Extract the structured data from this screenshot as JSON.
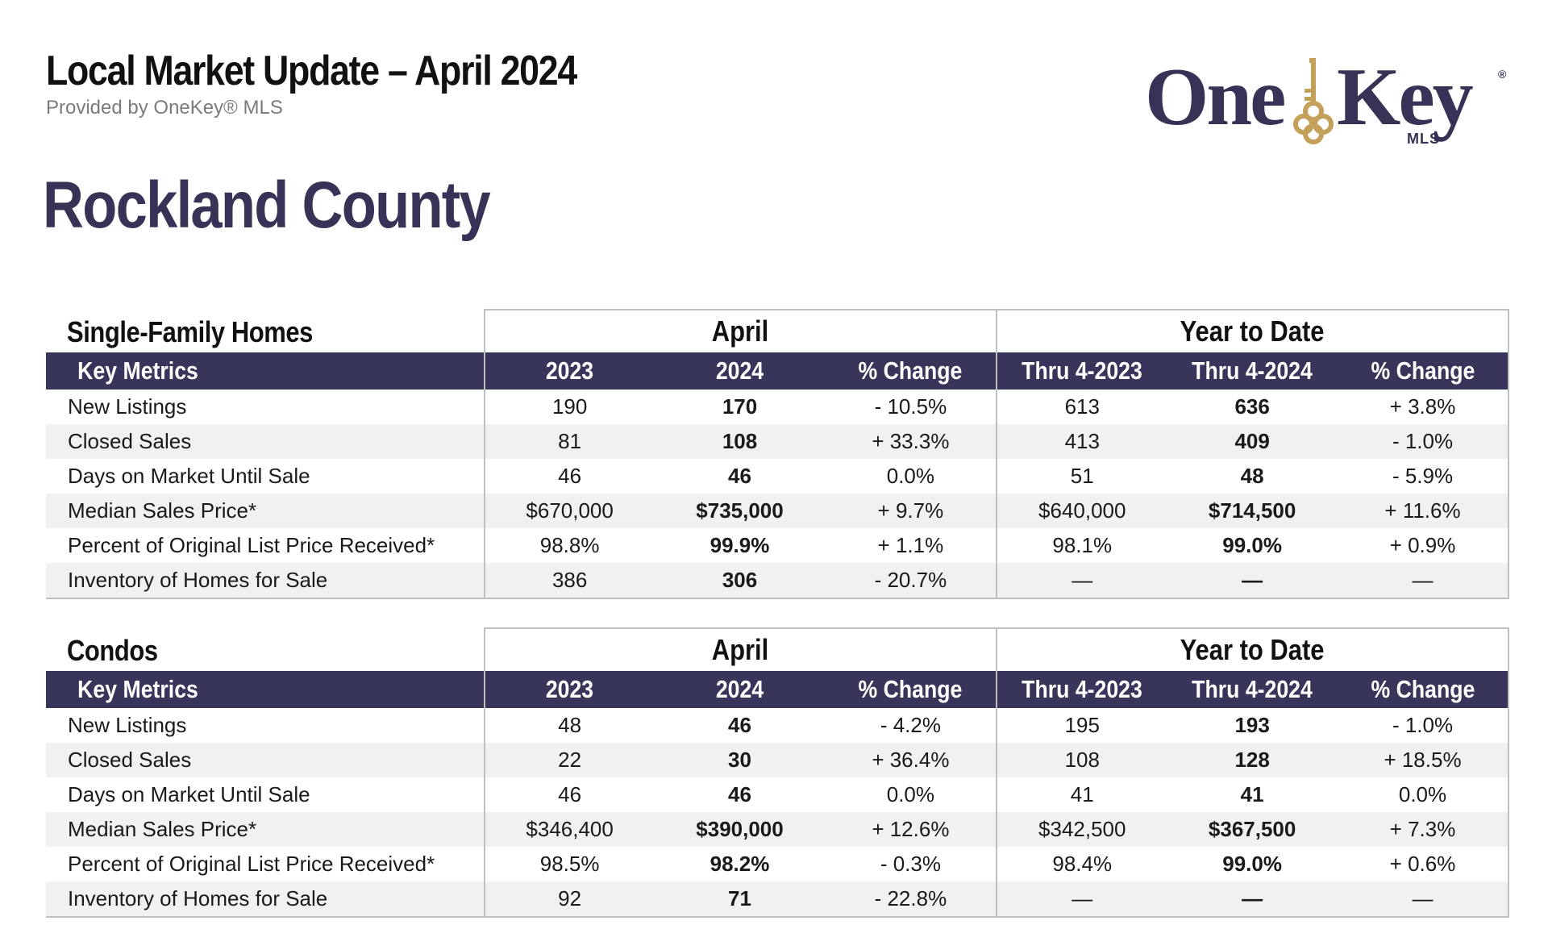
{
  "header": {
    "title": "Local Market Update – April 2024",
    "subtitle": "Provided by OneKey® MLS",
    "county": "Rockland County"
  },
  "logo": {
    "word_one": "One",
    "word_key": "Key",
    "sub": "MLS",
    "registered": "®",
    "color": "#363356",
    "key_color": "#c4a15a"
  },
  "colors": {
    "header_bar": "#38355a",
    "alt_row": "#f1f1f1",
    "border": "#bfbfbf"
  },
  "sections": [
    {
      "title": "Single-Family Homes",
      "group_april": "April",
      "group_ytd": "Year to Date",
      "columns": [
        "Key Metrics",
        "2023",
        "2024",
        "% Change",
        "Thru 4-2023",
        "Thru 4-2024",
        "% Change"
      ],
      "rows": [
        [
          "New Listings",
          "190",
          "170",
          "- 10.5%",
          "613",
          "636",
          "+ 3.8%"
        ],
        [
          "Closed Sales",
          "81",
          "108",
          "+ 33.3%",
          "413",
          "409",
          "- 1.0%"
        ],
        [
          "Days on Market Until Sale",
          "46",
          "46",
          "0.0%",
          "51",
          "48",
          "- 5.9%"
        ],
        [
          "Median Sales Price*",
          "$670,000",
          "$735,000",
          "+ 9.7%",
          "$640,000",
          "$714,500",
          "+ 11.6%"
        ],
        [
          "Percent of Original List Price Received*",
          "98.8%",
          "99.9%",
          "+ 1.1%",
          "98.1%",
          "99.0%",
          "+ 0.9%"
        ],
        [
          "Inventory of Homes for Sale",
          "386",
          "306",
          "- 20.7%",
          "—",
          "—",
          "—"
        ]
      ]
    },
    {
      "title": "Condos",
      "group_april": "April",
      "group_ytd": "Year to Date",
      "columns": [
        "Key Metrics",
        "2023",
        "2024",
        "% Change",
        "Thru 4-2023",
        "Thru 4-2024",
        "% Change"
      ],
      "rows": [
        [
          "New Listings",
          "48",
          "46",
          "- 4.2%",
          "195",
          "193",
          "- 1.0%"
        ],
        [
          "Closed Sales",
          "22",
          "30",
          "+ 36.4%",
          "108",
          "128",
          "+ 18.5%"
        ],
        [
          "Days on Market Until Sale",
          "46",
          "46",
          "0.0%",
          "41",
          "41",
          "0.0%"
        ],
        [
          "Median Sales Price*",
          "$346,400",
          "$390,000",
          "+ 12.6%",
          "$342,500",
          "$367,500",
          "+ 7.3%"
        ],
        [
          "Percent of Original List Price Received*",
          "98.5%",
          "98.2%",
          "- 0.3%",
          "98.4%",
          "99.0%",
          "+ 0.6%"
        ],
        [
          "Inventory of Homes for Sale",
          "92",
          "71",
          "- 22.8%",
          "—",
          "—",
          "—"
        ]
      ]
    }
  ]
}
